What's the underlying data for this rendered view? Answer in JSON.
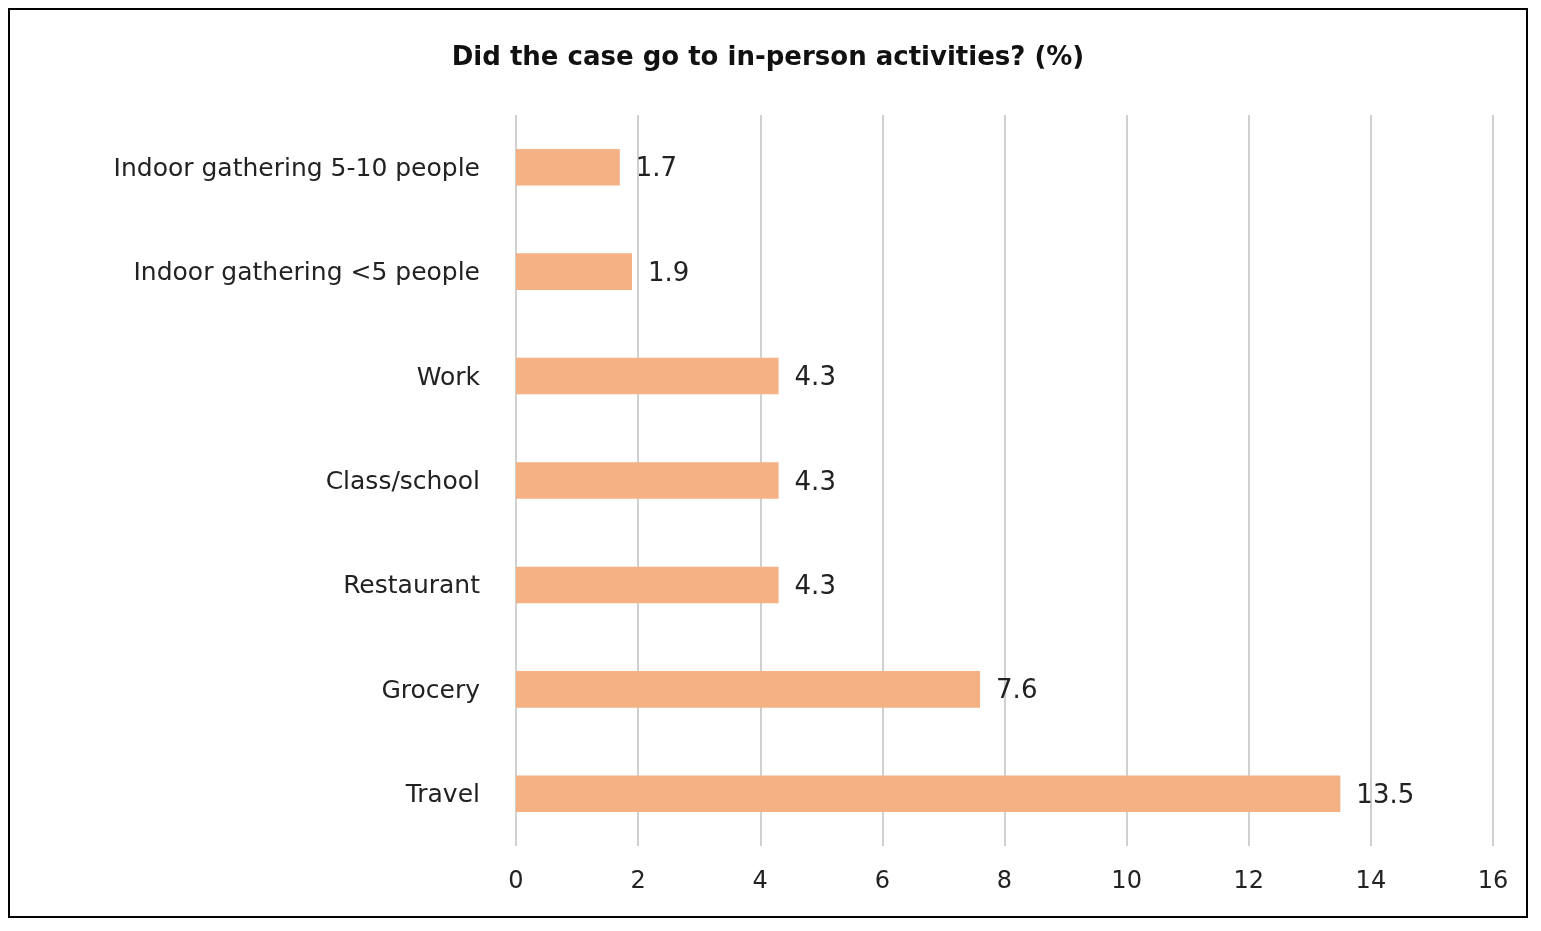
{
  "chart_data": {
    "type": "bar",
    "orientation": "horizontal",
    "title": "Did the case go to in-person activities? (%)",
    "categories": [
      "Indoor gathering 5-10 people",
      "Indoor gathering <5 people",
      "Work",
      "Class/school",
      "Restaurant",
      "Grocery",
      "Travel"
    ],
    "values": [
      1.7,
      1.9,
      4.3,
      4.3,
      4.3,
      7.6,
      13.5
    ],
    "color": "#f4b183",
    "xlim": [
      0,
      16
    ],
    "xticks": [
      0,
      2,
      4,
      6,
      8,
      10,
      12,
      14,
      16
    ],
    "grid": "x",
    "data_labels": true
  }
}
